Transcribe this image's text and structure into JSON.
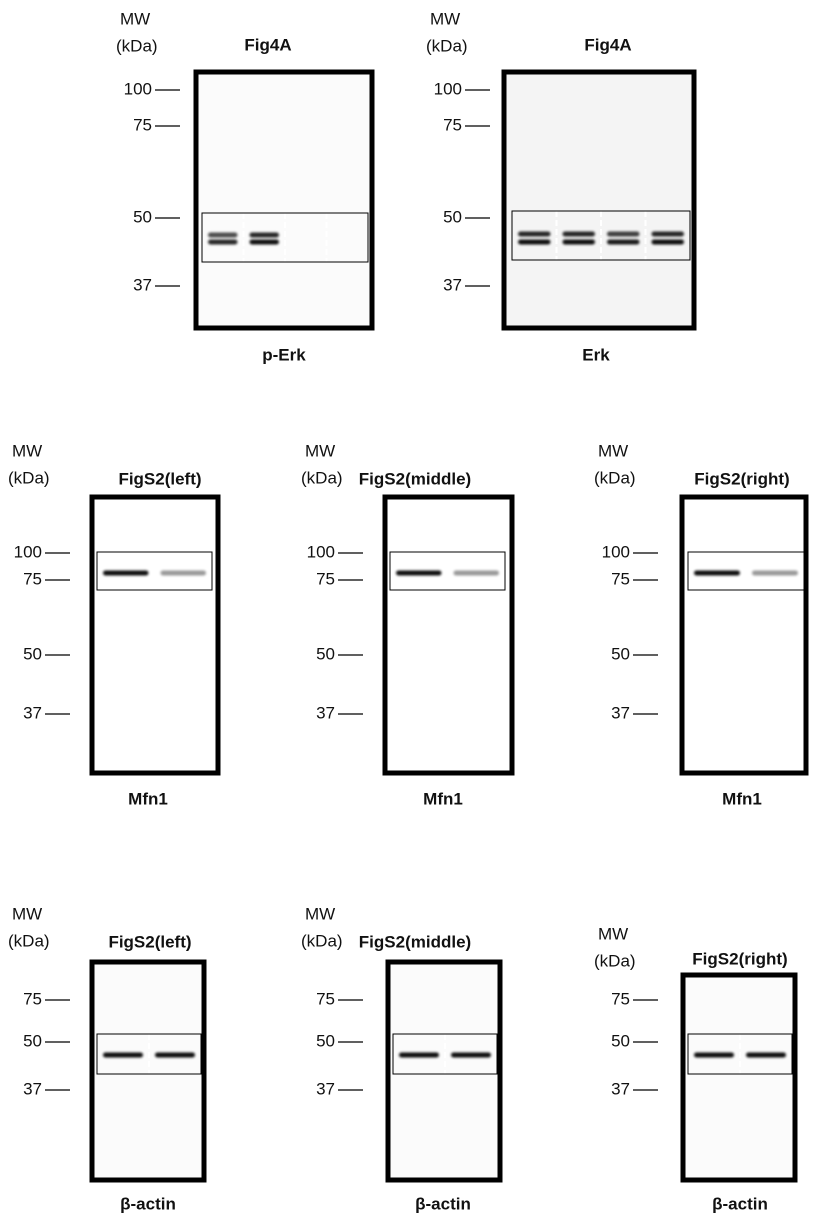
{
  "panels": [
    {
      "mw_label": [
        "MW",
        "(kDa)"
      ],
      "title": "Fig4A",
      "markers": [
        "100",
        "75",
        "50",
        "37"
      ],
      "label": "p-Erk"
    },
    {
      "mw_label": [
        "MW",
        "(kDa)"
      ],
      "title": "Fig4A",
      "markers": [
        "100",
        "75",
        "50",
        "37"
      ],
      "label": "Erk"
    },
    {
      "mw_label": [
        "MW",
        "(kDa)"
      ],
      "title": "FigS2(left)",
      "markers": [
        "100",
        "75",
        "50",
        "37"
      ],
      "label": "Mfn1"
    },
    {
      "mw_label": [
        "MW",
        "(kDa)"
      ],
      "title": "FigS2(middle)",
      "markers": [
        "100",
        "75",
        "50",
        "37"
      ],
      "label": "Mfn1"
    },
    {
      "mw_label": [
        "MW",
        "(kDa)"
      ],
      "title": "FigS2(right)",
      "markers": [
        "100",
        "75",
        "50",
        "37"
      ],
      "label": "Mfn1"
    },
    {
      "mw_label": [
        "MW",
        "(kDa)"
      ],
      "title": "FigS2(left)",
      "markers": [
        "75",
        "50",
        "37"
      ],
      "label": "β-actin"
    },
    {
      "mw_label": [
        "MW",
        "(kDa)"
      ],
      "title": "FigS2(middle)",
      "markers": [
        "75",
        "50",
        "37"
      ],
      "label": "β-actin"
    },
    {
      "mw_label": [
        "MW",
        "(kDa)"
      ],
      "title": "FigS2(right)",
      "markers": [
        "75",
        "50",
        "37"
      ],
      "label": "β-actin"
    }
  ]
}
